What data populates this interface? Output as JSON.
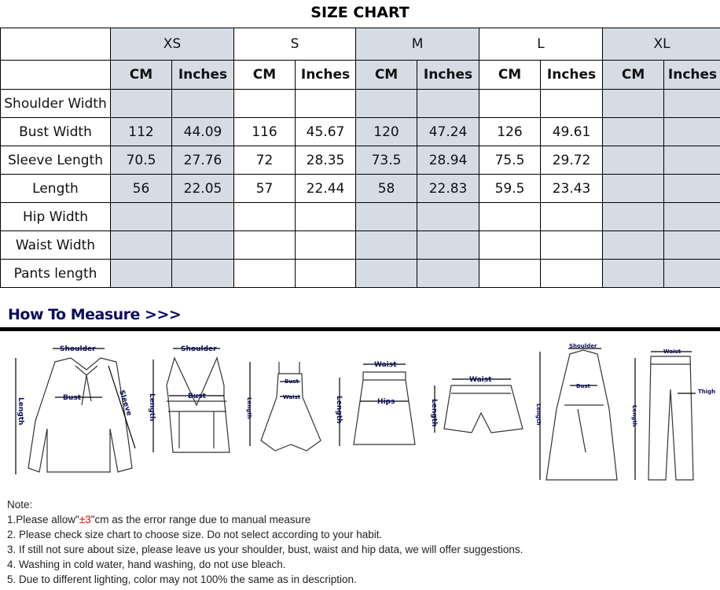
{
  "title": "SIZE CHART",
  "sizes": [
    "XS",
    "S",
    "M",
    "L",
    "XL"
  ],
  "units": {
    "cm": "CM",
    "in": "Inches"
  },
  "rows": [
    {
      "label": "Shoulder Width",
      "values": [
        "",
        "",
        "",
        "",
        "",
        "",
        "",
        "",
        "",
        ""
      ]
    },
    {
      "label": "Bust Width",
      "values": [
        "112",
        "44.09",
        "116",
        "45.67",
        "120",
        "47.24",
        "126",
        "49.61",
        "",
        ""
      ]
    },
    {
      "label": "Sleeve Length",
      "values": [
        "70.5",
        "27.76",
        "72",
        "28.35",
        "73.5",
        "28.94",
        "75.5",
        "29.72",
        "",
        ""
      ]
    },
    {
      "label": "Length",
      "values": [
        "56",
        "22.05",
        "57",
        "22.44",
        "58",
        "22.83",
        "59.5",
        "23.43",
        "",
        ""
      ]
    },
    {
      "label": "Hip Width",
      "values": [
        "",
        "",
        "",
        "",
        "",
        "",
        "",
        "",
        "",
        ""
      ]
    },
    {
      "label": "Waist Width",
      "values": [
        "",
        "",
        "",
        "",
        "",
        "",
        "",
        "",
        "",
        ""
      ]
    },
    {
      "label": "Pants length",
      "values": [
        "",
        "",
        "",
        "",
        "",
        "",
        "",
        "",
        "",
        ""
      ]
    }
  ],
  "colors": {
    "size_label": "#ff0000",
    "shaded_column": "#d6dce4",
    "measure_heading": "#0c0c5e"
  },
  "how_to_measure": {
    "heading": "How To Measure >>>",
    "labels": {
      "shoulder": "Shoulder",
      "bust": "Bust",
      "length": "Length",
      "sleeve": "Sleeve",
      "waist": "Waist",
      "hips": "Hips",
      "thigh": "Thigh"
    }
  },
  "notes": {
    "heading": "Note:",
    "n1_pre": "1.Please allow\"",
    "n1_red": "±3",
    "n1_post": "\"cm as the error range due to manual measure",
    "n2": "2. Please check size chart to choose size. Do not select according to your habit.",
    "n3": "3. If still not sure about size, please leave us your shoulder, bust, waist and hip data, we will offer suggestions.",
    "n4": "4. Washing in cold water, hand washing, do not use bleach.",
    "n5": "5. Due to different lighting, color may not 100% the same as in description."
  }
}
